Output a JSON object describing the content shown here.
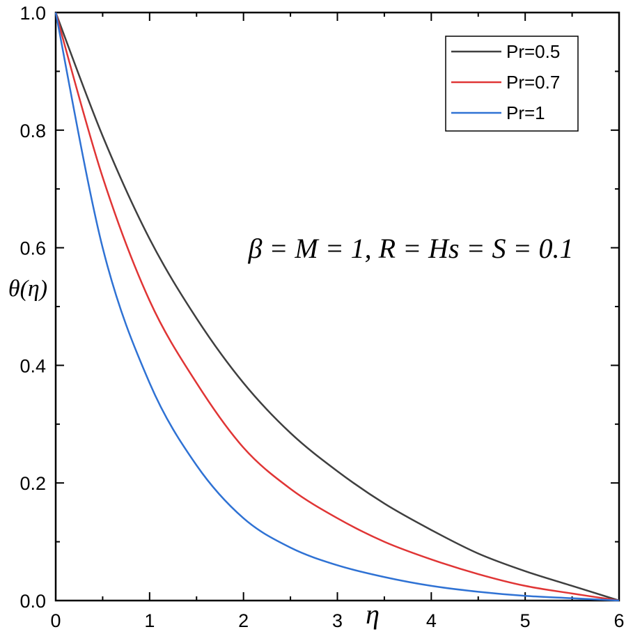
{
  "chart_data": {
    "type": "line",
    "title": "",
    "xlabel": "η",
    "ylabel": "θ(η)",
    "xlim": [
      0,
      6
    ],
    "ylim": [
      0,
      1
    ],
    "xticks": [
      "0",
      "1",
      "2",
      "3",
      "4",
      "5",
      "6"
    ],
    "yticks": [
      "0.0",
      "0.2",
      "0.4",
      "0.6",
      "0.8",
      "1.0"
    ],
    "x": [
      0,
      0.5,
      1,
      1.5,
      2,
      2.5,
      3,
      3.5,
      4,
      4.5,
      5,
      5.5,
      6
    ],
    "series": [
      {
        "name": "Pr=0.5",
        "color": "#3f3f3f",
        "values": [
          1.0,
          0.79,
          0.615,
          0.48,
          0.37,
          0.285,
          0.22,
          0.165,
          0.12,
          0.08,
          0.05,
          0.025,
          0.0
        ]
      },
      {
        "name": "Pr=0.7",
        "color": "#e03535",
        "values": [
          1.0,
          0.72,
          0.51,
          0.37,
          0.26,
          0.19,
          0.14,
          0.1,
          0.07,
          0.045,
          0.025,
          0.012,
          0.0
        ]
      },
      {
        "name": "Pr=1",
        "color": "#2f72d4",
        "values": [
          1.0,
          0.6,
          0.37,
          0.23,
          0.14,
          0.09,
          0.06,
          0.04,
          0.025,
          0.015,
          0.008,
          0.004,
          0.0
        ]
      }
    ],
    "legend_position": "top-right",
    "grid": false,
    "annotation": "β = M = 1, R = Hs = S = 0.1"
  }
}
